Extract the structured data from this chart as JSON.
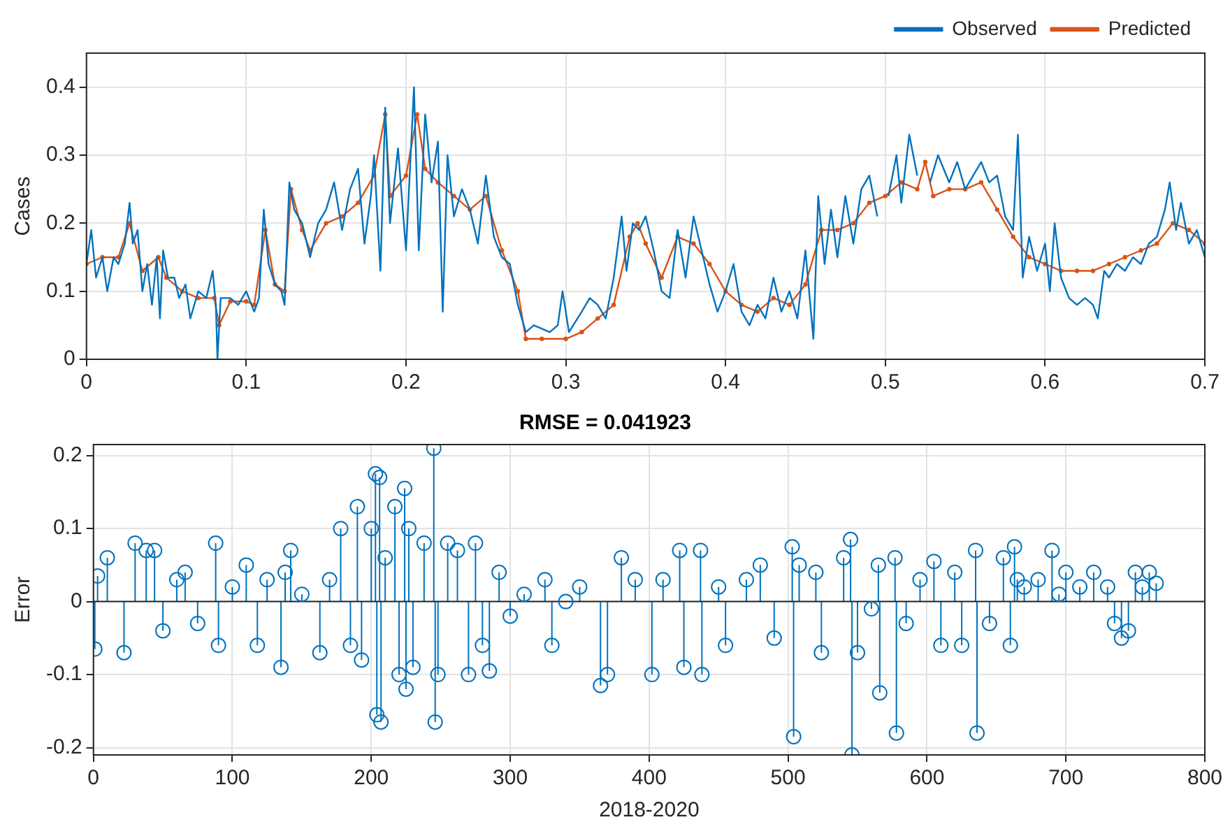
{
  "chart_data": [
    {
      "type": "line",
      "ylabel": "Cases",
      "xlim": [
        0,
        0.7
      ],
      "xticks": [
        0,
        0.1,
        0.2,
        0.3,
        0.4,
        0.5,
        0.6,
        0.7
      ],
      "ylim": [
        0,
        0.45
      ],
      "yticks": [
        0,
        0.1,
        0.2,
        0.3,
        0.4
      ],
      "grid": true,
      "legend": "top right",
      "line_style": "solid",
      "series": [
        {
          "name": "Observed",
          "color": "#0072bd",
          "marker": "none",
          "x": [
            0,
            0.003,
            0.006,
            0.01,
            0.013,
            0.017,
            0.02,
            0.024,
            0.027,
            0.029,
            0.032,
            0.035,
            0.038,
            0.041,
            0.044,
            0.046,
            0.048,
            0.051,
            0.055,
            0.058,
            0.062,
            0.065,
            0.07,
            0.075,
            0.079,
            0.081,
            0.082,
            0.084,
            0.09,
            0.095,
            0.1,
            0.105,
            0.108,
            0.111,
            0.114,
            0.118,
            0.122,
            0.124,
            0.127,
            0.13,
            0.135,
            0.14,
            0.145,
            0.15,
            0.155,
            0.16,
            0.165,
            0.17,
            0.174,
            0.178,
            0.18,
            0.184,
            0.187,
            0.19,
            0.195,
            0.2,
            0.205,
            0.208,
            0.212,
            0.216,
            0.22,
            0.223,
            0.226,
            0.23,
            0.235,
            0.24,
            0.245,
            0.25,
            0.255,
            0.26,
            0.265,
            0.27,
            0.275,
            0.28,
            0.29,
            0.295,
            0.298,
            0.302,
            0.31,
            0.315,
            0.32,
            0.325,
            0.33,
            0.335,
            0.338,
            0.342,
            0.346,
            0.35,
            0.355,
            0.36,
            0.365,
            0.37,
            0.375,
            0.38,
            0.385,
            0.39,
            0.395,
            0.4,
            0.405,
            0.41,
            0.415,
            0.42,
            0.425,
            0.43,
            0.435,
            0.44,
            0.445,
            0.45,
            0.455,
            0.458,
            0.462,
            0.466,
            0.47,
            0.475,
            0.48,
            0.485,
            0.49,
            0.495,
            0.498,
            0.502,
            0.507,
            0.51,
            0.515,
            0.52,
            0.525,
            0.528,
            0.533,
            0.54,
            0.545,
            0.55,
            0.555,
            0.56,
            0.565,
            0.57,
            0.575,
            0.58,
            0.583,
            0.586,
            0.59,
            0.595,
            0.6,
            0.603,
            0.606,
            0.61,
            0.615,
            0.62,
            0.625,
            0.63,
            0.633,
            0.637,
            0.64,
            0.645,
            0.65,
            0.655,
            0.66,
            0.665,
            0.67,
            0.675,
            0.678,
            0.682,
            0.685,
            0.69,
            0.695,
            0.7
          ],
          "values": [
            0.14,
            0.19,
            0.12,
            0.15,
            0.1,
            0.15,
            0.14,
            0.17,
            0.23,
            0.17,
            0.19,
            0.1,
            0.14,
            0.08,
            0.15,
            0.06,
            0.16,
            0.12,
            0.12,
            0.09,
            0.11,
            0.06,
            0.1,
            0.09,
            0.13,
            0.08,
            0.0,
            0.09,
            0.09,
            0.08,
            0.1,
            0.07,
            0.09,
            0.22,
            0.14,
            0.11,
            0.1,
            0.08,
            0.26,
            0.22,
            0.2,
            0.15,
            0.2,
            0.22,
            0.26,
            0.19,
            0.25,
            0.28,
            0.17,
            0.24,
            0.3,
            0.13,
            0.37,
            0.2,
            0.31,
            0.16,
            0.4,
            0.16,
            0.36,
            0.26,
            0.32,
            0.07,
            0.3,
            0.21,
            0.25,
            0.22,
            0.17,
            0.27,
            0.18,
            0.15,
            0.14,
            0.08,
            0.04,
            0.05,
            0.04,
            0.05,
            0.1,
            0.04,
            0.07,
            0.09,
            0.08,
            0.06,
            0.12,
            0.21,
            0.13,
            0.2,
            0.19,
            0.21,
            0.16,
            0.1,
            0.09,
            0.19,
            0.12,
            0.21,
            0.16,
            0.11,
            0.07,
            0.1,
            0.14,
            0.07,
            0.05,
            0.08,
            0.06,
            0.12,
            0.07,
            0.1,
            0.06,
            0.16,
            0.03,
            0.24,
            0.14,
            0.22,
            0.15,
            0.24,
            0.17,
            0.25,
            0.27,
            0.21,
            null,
            0.24,
            0.3,
            0.23,
            0.33,
            0.27,
            null,
            0.26,
            0.3,
            0.26,
            0.29,
            0.25,
            0.27,
            0.29,
            0.26,
            0.27,
            0.21,
            0.19,
            0.33,
            0.12,
            0.18,
            0.13,
            0.17,
            0.1,
            0.2,
            0.12,
            0.09,
            0.08,
            0.09,
            0.08,
            0.06,
            0.13,
            0.12,
            0.14,
            0.13,
            0.15,
            0.14,
            0.17,
            0.18,
            0.22,
            0.26,
            0.19,
            0.23,
            0.17,
            0.19,
            0.15
          ]
        },
        {
          "name": "Predicted",
          "color": "#d95319",
          "marker": "circle",
          "x": [
            0,
            0.01,
            0.02,
            0.027,
            0.035,
            0.045,
            0.05,
            0.06,
            0.07,
            0.08,
            0.083,
            0.09,
            0.1,
            0.105,
            0.112,
            0.118,
            0.124,
            0.128,
            0.135,
            0.14,
            0.15,
            0.16,
            0.17,
            0.18,
            0.187,
            0.19,
            0.2,
            0.207,
            0.212,
            0.22,
            0.23,
            0.24,
            0.25,
            0.26,
            0.27,
            0.275,
            0.285,
            0.3,
            0.31,
            0.32,
            0.33,
            0.34,
            0.345,
            0.35,
            0.36,
            0.37,
            0.38,
            0.39,
            0.4,
            0.41,
            0.42,
            0.43,
            0.44,
            0.45,
            0.46,
            0.47,
            0.48,
            0.49,
            0.5,
            0.51,
            0.52,
            0.525,
            0.53,
            0.54,
            0.55,
            0.56,
            0.57,
            0.58,
            0.59,
            0.6,
            0.61,
            0.62,
            0.63,
            0.64,
            0.65,
            0.66,
            0.67,
            0.68,
            0.69,
            0.7
          ],
          "values": [
            0.14,
            0.15,
            0.15,
            0.2,
            0.13,
            0.15,
            0.12,
            0.1,
            0.09,
            0.09,
            0.05,
            0.085,
            0.085,
            0.08,
            0.19,
            0.11,
            0.1,
            0.25,
            0.19,
            0.16,
            0.2,
            0.21,
            0.23,
            0.27,
            0.36,
            0.24,
            0.27,
            0.36,
            0.28,
            0.26,
            0.24,
            0.22,
            0.24,
            0.16,
            0.1,
            0.03,
            0.03,
            0.03,
            0.04,
            0.06,
            0.08,
            0.18,
            0.2,
            0.17,
            0.12,
            0.18,
            0.17,
            0.14,
            0.1,
            0.08,
            0.07,
            0.09,
            0.08,
            0.11,
            0.19,
            0.19,
            0.2,
            0.23,
            0.24,
            0.26,
            0.25,
            0.29,
            0.24,
            0.25,
            0.25,
            0.26,
            0.22,
            0.18,
            0.15,
            0.14,
            0.13,
            0.13,
            0.13,
            0.14,
            0.15,
            0.16,
            0.17,
            0.2,
            0.19,
            0.17
          ]
        }
      ]
    },
    {
      "type": "lollipop",
      "title": "RMSE = 0.041923",
      "xlabel": "2018-2020",
      "ylabel": "Error",
      "xlim": [
        0,
        800
      ],
      "xticks": [
        0,
        100,
        200,
        300,
        400,
        500,
        600,
        700,
        800
      ],
      "ylim": [
        -0.21,
        0.215
      ],
      "yticks": [
        -0.2,
        -0.1,
        0,
        0.1,
        0.2
      ],
      "grid": true,
      "legend": false,
      "marker": "circle",
      "color": "#0072bd",
      "x": [
        1,
        3,
        10,
        22,
        30,
        38,
        44,
        50,
        60,
        66,
        75,
        88,
        90,
        100,
        110,
        118,
        125,
        135,
        138,
        142,
        150,
        163,
        170,
        178,
        185,
        190,
        193,
        200,
        203,
        204,
        206,
        207,
        210,
        217,
        220,
        224,
        225,
        227,
        230,
        238,
        245,
        246,
        248,
        255,
        262,
        270,
        275,
        280,
        285,
        292,
        300,
        310,
        325,
        330,
        340,
        350,
        365,
        370,
        380,
        390,
        402,
        410,
        422,
        425,
        437,
        438,
        450,
        455,
        470,
        480,
        490,
        503,
        504,
        508,
        520,
        524,
        540,
        545,
        546,
        550,
        560,
        565,
        566,
        577,
        578,
        585,
        595,
        605,
        610,
        620,
        625,
        635,
        636,
        645,
        655,
        660,
        663,
        665,
        670,
        680,
        690,
        695,
        700,
        710,
        720,
        730,
        735,
        740,
        745,
        750,
        755,
        760,
        765
      ],
      "values": [
        -0.065,
        0.035,
        0.06,
        -0.07,
        0.08,
        0.07,
        0.07,
        -0.04,
        0.03,
        0.04,
        -0.03,
        0.08,
        -0.06,
        0.02,
        0.05,
        -0.06,
        0.03,
        -0.09,
        0.04,
        0.07,
        0.01,
        -0.07,
        0.03,
        0.1,
        -0.06,
        0.13,
        -0.08,
        0.1,
        0.175,
        -0.155,
        0.17,
        -0.165,
        0.06,
        0.13,
        -0.1,
        0.155,
        -0.12,
        0.1,
        -0.09,
        0.08,
        0.21,
        -0.165,
        -0.1,
        0.08,
        0.07,
        -0.1,
        0.08,
        -0.06,
        -0.095,
        0.04,
        -0.02,
        0.01,
        0.03,
        -0.06,
        0.0,
        0.02,
        -0.115,
        -0.1,
        0.06,
        0.03,
        -0.1,
        0.03,
        0.07,
        -0.09,
        0.07,
        -0.1,
        0.02,
        -0.06,
        0.03,
        0.05,
        -0.05,
        0.075,
        -0.185,
        0.05,
        0.04,
        -0.07,
        0.06,
        0.085,
        -0.21,
        -0.07,
        -0.01,
        0.05,
        -0.125,
        0.06,
        -0.18,
        -0.03,
        0.03,
        0.055,
        -0.06,
        0.04,
        -0.06,
        0.07,
        -0.18,
        -0.03,
        0.06,
        -0.06,
        0.075,
        0.03,
        0.02,
        0.03,
        0.07,
        0.01,
        0.04,
        0.02,
        0.04,
        0.02,
        -0.03,
        -0.05,
        -0.04,
        0.04,
        0.02,
        0.04,
        0.025
      ]
    }
  ]
}
